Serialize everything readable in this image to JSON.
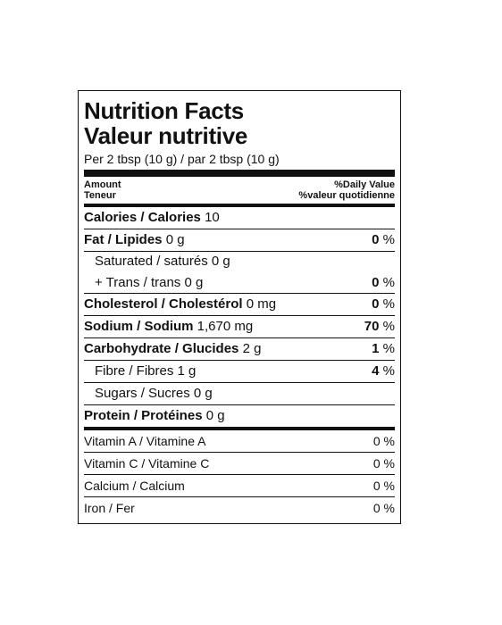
{
  "title_en": "Nutrition Facts",
  "title_fr": "Valeur nutritive",
  "serving": "Per 2 tbsp (10 g) / par 2 tbsp (10 g)",
  "header": {
    "amount": "Amount",
    "teneur": "Teneur",
    "dv": "%Daily Value",
    "dv_fr": "%valeur quotidienne"
  },
  "calories": {
    "label": "Calories / Calories",
    "value": "10"
  },
  "fat": {
    "label": "Fat / Lipides",
    "value": "0 g",
    "pct": "0",
    "pct_sign": "%"
  },
  "saturated": {
    "label": "Saturated / saturés",
    "value": "0 g"
  },
  "trans": {
    "label": "+ Trans / trans",
    "value": "0 g",
    "pct": "0",
    "pct_sign": "%"
  },
  "cholesterol": {
    "label": "Cholesterol / Cholestérol",
    "value": "0 mg",
    "pct": "0",
    "pct_sign": "%"
  },
  "sodium": {
    "label": "Sodium / Sodium",
    "value": "1,670 mg",
    "pct": "70",
    "pct_sign": "%"
  },
  "carb": {
    "label": "Carbohydrate / Glucides",
    "value": "2 g",
    "pct": "1",
    "pct_sign": "%"
  },
  "fibre": {
    "label": "Fibre / Fibres",
    "value": "1 g",
    "pct": "4",
    "pct_sign": "%"
  },
  "sugars": {
    "label": "Sugars / Sucres",
    "value": "0 g"
  },
  "protein": {
    "label": "Protein / Protéines",
    "value": "0 g"
  },
  "vitamins": [
    {
      "label": "Vitamin A / Vitamine A",
      "pct": "0 %"
    },
    {
      "label": "Vitamin C / Vitamine C",
      "pct": "0 %"
    },
    {
      "label": "Calcium / Calcium",
      "pct": "0 %"
    },
    {
      "label": "Iron / Fer",
      "pct": "0 %"
    }
  ]
}
